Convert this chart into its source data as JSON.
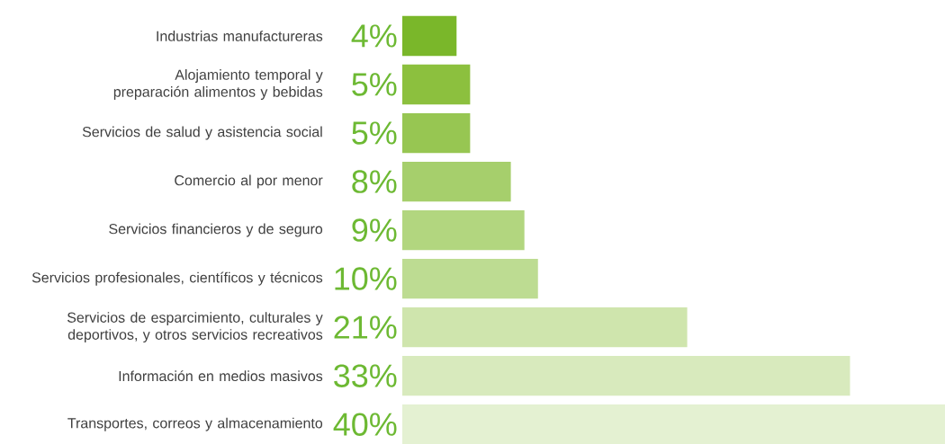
{
  "chart_data": {
    "type": "bar",
    "orientation": "horizontal",
    "data_labels": true,
    "categories": [
      "Industrias manufactureras",
      "Alojamiento temporal y preparación alimentos y bebidas",
      "Servicios de salud y asistencia social",
      "Comercio al por menor",
      "Servicios financieros y de seguro",
      "Servicios profesionales, científicos y técnicos",
      "Servicios de esparcimiento, culturales y deportivos, y otros servicios recreativos",
      "Información en medios masivos",
      "Transportes, correos y almacenamiento"
    ],
    "values": [
      4,
      5,
      5,
      8,
      9,
      10,
      21,
      33,
      40
    ],
    "value_labels": [
      "4%",
      "5%",
      "5%",
      "8%",
      "9%",
      "10%",
      "21%",
      "33%",
      "40%"
    ],
    "colors": [
      "#7ab72a",
      "#8cc03e",
      "#97c652",
      "#a6cf6c",
      "#b2d67f",
      "#bddc92",
      "#cfe5ad",
      "#d8eabd",
      "#e4f1d2"
    ]
  }
}
